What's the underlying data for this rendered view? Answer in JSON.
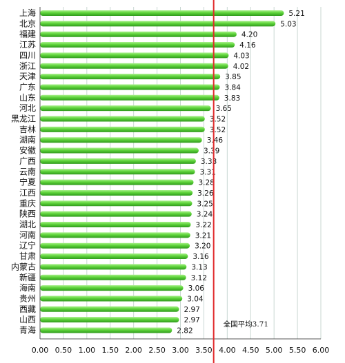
{
  "chart_data": {
    "type": "bar",
    "orientation": "horizontal",
    "categories": [
      "上海",
      "北京",
      "福建",
      "江苏",
      "四川",
      "浙江",
      "天津",
      "广东",
      "山东",
      "河北",
      "黑龙江",
      "吉林",
      "湖南",
      "安徽",
      "广西",
      "云南",
      "宁夏",
      "江西",
      "重庆",
      "陕西",
      "湖北",
      "河南",
      "辽宁",
      "甘肃",
      "内蒙古",
      "新疆",
      "海南",
      "贵州",
      "西藏",
      "山西",
      "青海"
    ],
    "values": [
      5.21,
      5.03,
      4.2,
      4.16,
      4.03,
      4.02,
      3.85,
      3.84,
      3.83,
      3.65,
      3.52,
      3.52,
      3.46,
      3.39,
      3.33,
      3.31,
      3.28,
      3.26,
      3.25,
      3.24,
      3.22,
      3.21,
      3.2,
      3.16,
      3.13,
      3.12,
      3.06,
      3.04,
      2.97,
      2.97,
      2.82
    ],
    "value_labels": [
      "5.21",
      "5.03",
      "4.20",
      "4.16",
      "4.03",
      "4.02",
      "3.85",
      "3.84",
      "3.83",
      "3.65",
      "3.52",
      "3.52",
      "3.46",
      "3.39",
      "3.33",
      "3.31",
      "3.28",
      "3.26",
      "3.25",
      "3.24",
      "3.22",
      "3.21",
      "3.20",
      "3.16",
      "3.13",
      "3.12",
      "3.06",
      "3.04",
      "2.97",
      "2.97",
      "2.82"
    ],
    "xlim": [
      0,
      6
    ],
    "x_ticks": [
      "0.00",
      "0.50",
      "1.00",
      "1.50",
      "2.00",
      "2.50",
      "3.00",
      "3.50",
      "4.00",
      "4.50",
      "5.00",
      "5.50",
      "6.00"
    ],
    "grid": "vertical",
    "reference_line": {
      "value": 3.71,
      "label": "全国平均3.71"
    },
    "title": "",
    "xlabel": "",
    "ylabel": ""
  },
  "colors": {
    "bar": "#5ed43a",
    "bar_highlight": "#a8f08a",
    "bar_shadow": "#2f9a1c",
    "reference_line": "#e0282a",
    "grid": "#c9d7d2",
    "axis": "#555555"
  }
}
